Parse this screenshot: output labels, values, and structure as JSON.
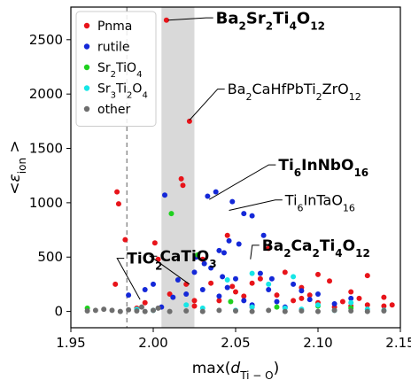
{
  "chart_data": {
    "type": "scatter",
    "xlabel": {
      "main": "max(",
      "sym": "d",
      "sub": "Ti − O",
      "tail": ")"
    },
    "ylabel": {
      "prefix": "<",
      "sym": "ε",
      "sub": "ion",
      "suffix": " >"
    },
    "xlim": [
      1.95,
      2.15
    ],
    "ylim": [
      -150,
      2800
    ],
    "x_ticks": [
      {
        "value": 1.95,
        "label": "1.95"
      },
      {
        "value": 2.0,
        "label": "2.00"
      },
      {
        "value": 2.05,
        "label": "2.05"
      },
      {
        "value": 2.1,
        "label": "2.10"
      },
      {
        "value": 2.15,
        "label": "2.15"
      }
    ],
    "y_ticks": [
      {
        "value": 0,
        "label": "0"
      },
      {
        "value": 500,
        "label": "500"
      },
      {
        "value": 1000,
        "label": "1000"
      },
      {
        "value": 1500,
        "label": "1500"
      },
      {
        "value": 2000,
        "label": "2000"
      },
      {
        "value": 2500,
        "label": "2500"
      }
    ],
    "shaded_band": {
      "x_start": 2.005,
      "x_end": 2.025,
      "color": "#d9d9d9"
    },
    "reference_line": {
      "x": 1.984,
      "style": "dashed",
      "color": "#777777"
    },
    "legend_position": "top-left",
    "series": [
      {
        "name": "Pnma",
        "color": "#e8141a",
        "points": [
          [
            1.977,
            250
          ],
          [
            1.978,
            1100
          ],
          [
            1.979,
            990
          ],
          [
            1.983,
            660
          ],
          [
            2.001,
            630
          ],
          [
            2.003,
            480
          ],
          [
            2.008,
            2680
          ],
          [
            2.017,
            1220
          ],
          [
            2.018,
            1160
          ],
          [
            2.022,
            1750
          ],
          [
            2.03,
            480
          ],
          [
            2.045,
            700
          ],
          [
            2.048,
            230
          ],
          [
            2.06,
            260
          ],
          [
            2.07,
            580
          ],
          [
            2.08,
            360
          ],
          [
            2.09,
            220
          ],
          [
            2.1,
            340
          ],
          [
            2.107,
            280
          ],
          [
            2.12,
            180
          ],
          [
            2.13,
            330
          ],
          [
            2.14,
            130
          ],
          [
            2.145,
            60
          ],
          [
            2.115,
            90
          ],
          [
            2.09,
            120
          ],
          [
            2.1,
            80
          ],
          [
            2.13,
            60
          ],
          [
            2.075,
            150
          ],
          [
            2.06,
            40
          ],
          [
            2.04,
            100
          ],
          [
            2.035,
            260
          ],
          [
            2.01,
            160
          ],
          [
            1.995,
            80
          ],
          [
            1.99,
            30
          ],
          [
            2.025,
            100
          ],
          [
            2.055,
            140
          ],
          [
            2.085,
            100
          ],
          [
            2.125,
            120
          ],
          [
            2.14,
            50
          ],
          [
            2.025,
            50
          ],
          [
            2.02,
            250
          ],
          [
            2.05,
            180
          ],
          [
            2.065,
            300
          ],
          [
            2.095,
            150
          ],
          [
            2.11,
            40
          ],
          [
            2.12,
            50
          ]
        ]
      },
      {
        "name": "rutile",
        "color": "#1428d8",
        "points": [
          [
            2.007,
            1070
          ],
          [
            2.038,
            1100
          ],
          [
            2.033,
            1060
          ],
          [
            2.048,
            1010
          ],
          [
            2.055,
            900
          ],
          [
            2.06,
            880
          ],
          [
            2.067,
            700
          ],
          [
            2.046,
            650
          ],
          [
            2.052,
            620
          ],
          [
            2.04,
            560
          ],
          [
            2.031,
            440
          ],
          [
            2.035,
            400
          ],
          [
            2.025,
            360
          ],
          [
            2.042,
            320
          ],
          [
            2.015,
            290
          ],
          [
            2.0,
            250
          ],
          [
            1.995,
            200
          ],
          [
            2.02,
            160
          ],
          [
            2.065,
            350
          ],
          [
            2.072,
            300
          ],
          [
            2.085,
            250
          ],
          [
            2.09,
            190
          ],
          [
            2.1,
            160
          ],
          [
            2.12,
            120
          ],
          [
            2.04,
            140
          ],
          [
            2.055,
            100
          ],
          [
            2.06,
            60
          ],
          [
            2.075,
            90
          ],
          [
            2.08,
            40
          ],
          [
            1.985,
            150
          ],
          [
            2.005,
            40
          ],
          [
            2.012,
            130
          ],
          [
            2.03,
            200
          ],
          [
            2.045,
            220
          ],
          [
            2.05,
            300
          ],
          [
            2.07,
            200
          ],
          [
            2.095,
            110
          ],
          [
            2.11,
            70
          ],
          [
            2.026,
            500
          ],
          [
            2.043,
            540
          ]
        ]
      },
      {
        "name": "Sr2TiO4",
        "color": "#1fd11f",
        "points": [
          [
            2.011,
            900
          ],
          [
            2.027,
            520
          ],
          [
            2.047,
            90
          ],
          [
            1.96,
            30
          ],
          [
            2.075,
            40
          ],
          [
            2.1,
            50
          ],
          [
            2.12,
            30
          ]
        ]
      },
      {
        "name": "Sr3Ti2O4",
        "color": "#16e6e6",
        "points": [
          [
            2.06,
            350
          ],
          [
            2.045,
            290
          ],
          [
            2.085,
            320
          ],
          [
            2.07,
            250
          ],
          [
            1.99,
            20
          ],
          [
            2.0,
            10
          ],
          [
            2.03,
            30
          ],
          [
            2.05,
            10
          ],
          [
            2.09,
            20
          ],
          [
            2.11,
            10
          ],
          [
            2.13,
            20
          ],
          [
            2.14,
            10
          ],
          [
            2.02,
            60
          ],
          [
            2.06,
            40
          ],
          [
            2.08,
            30
          ],
          [
            2.1,
            60
          ],
          [
            2.12,
            80
          ]
        ]
      },
      {
        "name": "other",
        "color": "#6e6e6e",
        "points": [
          [
            1.96,
            5
          ],
          [
            1.965,
            10
          ],
          [
            1.97,
            20
          ],
          [
            1.975,
            10
          ],
          [
            1.98,
            0
          ],
          [
            1.985,
            15
          ],
          [
            1.99,
            5
          ],
          [
            1.995,
            0
          ],
          [
            2.0,
            10
          ],
          [
            2.01,
            0
          ],
          [
            2.02,
            5
          ],
          [
            2.03,
            0
          ],
          [
            2.04,
            10
          ],
          [
            2.05,
            5
          ],
          [
            2.06,
            0
          ],
          [
            2.07,
            10
          ],
          [
            2.08,
            0
          ],
          [
            2.09,
            5
          ],
          [
            2.1,
            0
          ],
          [
            2.11,
            10
          ],
          [
            2.12,
            5
          ],
          [
            2.13,
            0
          ],
          [
            2.14,
            5
          ],
          [
            1.993,
            40
          ],
          [
            2.003,
            30
          ]
        ]
      }
    ],
    "annotations": [
      {
        "parts": [
          [
            "Ba",
            ""
          ],
          [
            "2",
            "sub"
          ],
          [
            "Sr",
            ""
          ],
          [
            "2",
            "sub"
          ],
          [
            "Ti",
            ""
          ],
          [
            "4",
            "sub"
          ],
          [
            "O",
            ""
          ],
          [
            "12",
            "sub"
          ]
        ],
        "bold": true,
        "size": 18,
        "text_at": [
          2.038,
          2650
        ],
        "point": [
          2.009,
          2680
        ]
      },
      {
        "parts": [
          [
            "Ba",
            ""
          ],
          [
            "2",
            "sub"
          ],
          [
            "CaHfPbTi",
            ""
          ],
          [
            "2",
            "sub"
          ],
          [
            "ZrO",
            ""
          ],
          [
            "12",
            "sub"
          ]
        ],
        "bold": false,
        "size": 16,
        "text_at": [
          2.045,
          2000
        ],
        "point": [
          2.022,
          1760
        ]
      },
      {
        "parts": [
          [
            "Ti",
            ""
          ],
          [
            "6",
            "sub"
          ],
          [
            "InNbO",
            ""
          ],
          [
            "16",
            "sub"
          ]
        ],
        "bold": true,
        "size": 17,
        "text_at": [
          2.076,
          1300
        ],
        "point": [
          2.034,
          1030
        ]
      },
      {
        "parts": [
          [
            "Ti",
            ""
          ],
          [
            "6",
            "sub"
          ],
          [
            "InTaO",
            ""
          ],
          [
            "16",
            "sub"
          ]
        ],
        "bold": false,
        "size": 16,
        "text_at": [
          2.08,
          980
        ],
        "point": [
          2.046,
          930
        ]
      },
      {
        "parts": [
          [
            "Ba",
            ""
          ],
          [
            "2",
            "sub"
          ],
          [
            "Ca",
            ""
          ],
          [
            "2",
            "sub"
          ],
          [
            "Ti",
            ""
          ],
          [
            "4",
            "sub"
          ],
          [
            "O",
            ""
          ],
          [
            "12",
            "sub"
          ]
        ],
        "bold": true,
        "size": 17,
        "text_at": [
          2.066,
          560
        ],
        "point": [
          2.059,
          480
        ]
      },
      {
        "parts": [
          [
            "CaTiO",
            ""
          ],
          [
            "3",
            "sub"
          ]
        ],
        "bold": true,
        "size": 17,
        "text_at": [
          2.004,
          460
        ],
        "point": [
          2.022,
          250
        ]
      },
      {
        "parts": [
          [
            "TiO",
            ""
          ],
          [
            "2",
            "sub"
          ]
        ],
        "bold": true,
        "size": 17,
        "text_at": [
          1.984,
          440
        ],
        "point": [
          1.992,
          110
        ]
      }
    ]
  },
  "colors": {
    "axis": "#000000",
    "frame": "#000000"
  },
  "legend_style": {
    "border": "#cccccc",
    "background": "#ffffff"
  }
}
